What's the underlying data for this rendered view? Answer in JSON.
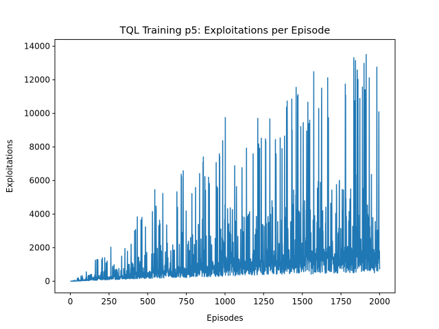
{
  "chart_data": {
    "type": "line",
    "title": "TQL Training p5: Exploitations per Episode",
    "xlabel": "Episodes",
    "ylabel": "Exploitations",
    "xlim": [
      -100,
      2100
    ],
    "ylim": [
      -690,
      14400
    ],
    "xticks": [
      0,
      250,
      500,
      750,
      1000,
      1250,
      1500,
      1750,
      2000
    ],
    "yticks": [
      0,
      2000,
      4000,
      6000,
      8000,
      10000,
      12000,
      14000
    ],
    "grid": false,
    "legend": "none",
    "series": [
      {
        "color": "#1f77b4",
        "x": [
          0,
          25,
          50,
          75,
          100,
          125,
          150,
          175,
          200,
          225,
          250,
          275,
          300,
          325,
          350,
          375,
          400,
          425,
          450,
          475,
          500,
          525,
          550,
          575,
          600,
          625,
          650,
          675,
          700,
          725,
          750,
          775,
          800,
          825,
          850,
          875,
          900,
          925,
          950,
          975,
          1000,
          1025,
          1050,
          1075,
          1100,
          1125,
          1150,
          1175,
          1200,
          1225,
          1250,
          1275,
          1300,
          1325,
          1350,
          1375,
          1400,
          1425,
          1450,
          1475,
          1500,
          1525,
          1550,
          1575,
          1600,
          1625,
          1650,
          1675,
          1700,
          1725,
          1750,
          1775,
          1800,
          1825,
          1850,
          1875,
          1900,
          1925,
          1950,
          1975,
          2000
        ],
        "peak": [
          20,
          60,
          250,
          350,
          600,
          1100,
          1300,
          1600,
          1500,
          1400,
          1300,
          3050,
          1600,
          1700,
          2000,
          2300,
          2500,
          3850,
          4000,
          3900,
          3850,
          4100,
          6000,
          3500,
          7200,
          7300,
          4300,
          5600,
          5800,
          8100,
          4800,
          5900,
          6800,
          7300,
          9000,
          6200,
          7100,
          7000,
          7200,
          8200,
          10050,
          10000,
          10600,
          7200,
          8300,
          8900,
          9500,
          8200,
          11200,
          8800,
          10000,
          9000,
          11700,
          9000,
          9800,
          9000,
          10700,
          11600,
          12500,
          11300,
          11800,
          11700,
          11200,
          12900,
          13000,
          12400,
          11800,
          13000,
          13450,
          12700,
          13000,
          13600,
          13700,
          13400,
          13600,
          13300,
          13700,
          13400,
          13600,
          13300,
          11600
        ],
        "base": [
          0,
          5,
          10,
          20,
          30,
          40,
          50,
          60,
          70,
          80,
          90,
          100,
          100,
          110,
          120,
          130,
          140,
          140,
          150,
          150,
          160,
          170,
          160,
          180,
          190,
          200,
          200,
          210,
          220,
          230,
          200,
          240,
          250,
          240,
          260,
          250,
          270,
          280,
          250,
          280,
          300,
          310,
          280,
          330,
          320,
          300,
          340,
          350,
          330,
          360,
          350,
          330,
          380,
          360,
          390,
          350,
          400,
          420,
          380,
          400,
          430,
          420,
          400,
          450,
          440,
          430,
          460,
          450,
          470,
          480,
          460,
          490,
          500,
          480,
          510,
          500,
          520,
          490,
          510,
          500,
          500
        ]
      }
    ]
  }
}
